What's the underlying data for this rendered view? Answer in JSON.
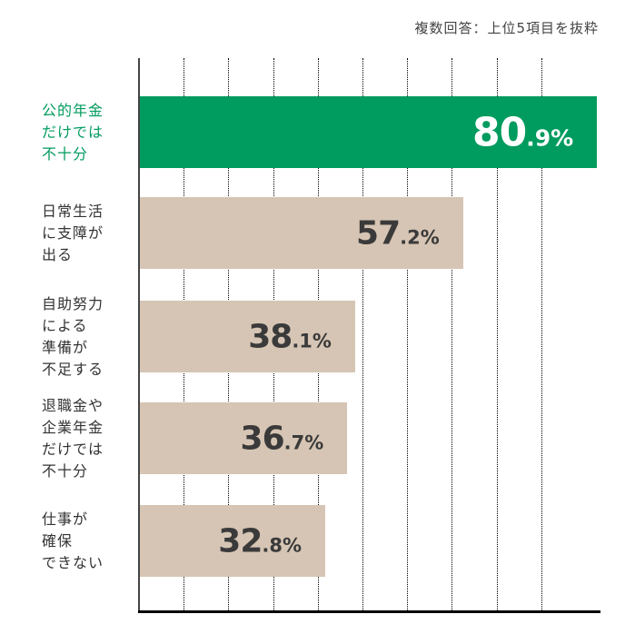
{
  "note": "複数回答：上位5項目を抜粋",
  "chart_data": {
    "type": "bar",
    "orientation": "horizontal",
    "title": "",
    "subtitle": "複数回答：上位5項目を抜粋",
    "xlabel": "",
    "ylabel": "",
    "xlim": [
      0,
      100
    ],
    "grid": true,
    "categories": [
      "公的年金\nだけでは\n不十分",
      "日常生活\nに支障が\n出る",
      "自助努力\nによる\n準備が\n不足する",
      "退職金や\n企業年金\nだけでは\n不十分",
      "仕事が\n確保\nできない"
    ],
    "values": [
      80.9,
      57.2,
      38.1,
      36.7,
      32.8
    ],
    "labels": [
      {
        "int": "80",
        "dec": ".9%"
      },
      {
        "int": "57",
        "dec": ".2%"
      },
      {
        "int": "38",
        "dec": ".1%"
      },
      {
        "int": "36",
        "dec": ".7%"
      },
      {
        "int": "32",
        "dec": ".8%"
      }
    ],
    "highlight_index": 0,
    "colors": {
      "highlight": "#009b5e",
      "normal": "#d6c5b4"
    }
  }
}
